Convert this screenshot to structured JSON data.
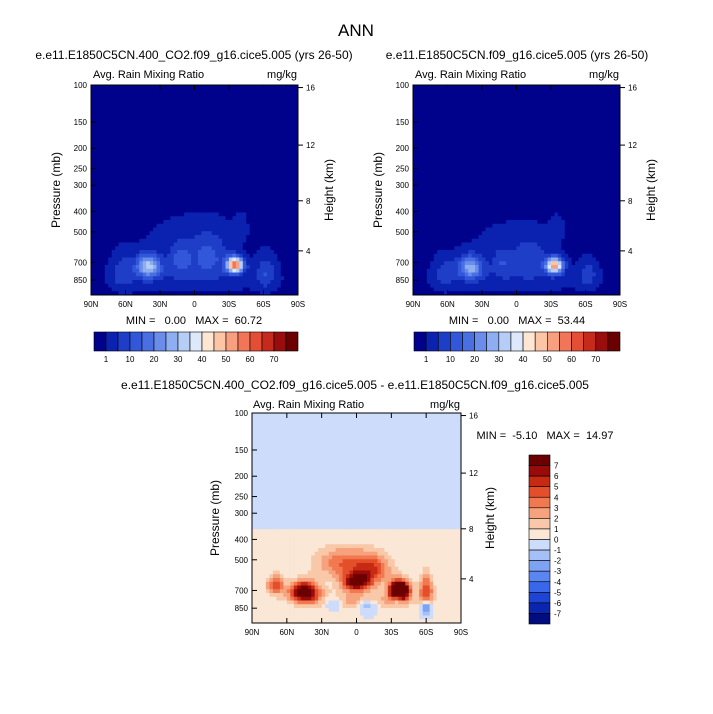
{
  "page_title": "ANN",
  "colors": {
    "abs_scale": [
      "#00028c",
      "#0b22b0",
      "#1f3ec8",
      "#3357da",
      "#4a6fe3",
      "#6a8dec",
      "#8eaef2",
      "#b6cdf6",
      "#dde8fa",
      "#fde6d2",
      "#fbc5a6",
      "#f79f7e",
      "#f17558",
      "#e44e35",
      "#c62a1d",
      "#9a0d0d",
      "#6b0000"
    ],
    "diff_scale": [
      "#000d80",
      "#0a26b0",
      "#1d44d4",
      "#3a66ec",
      "#5a86f2",
      "#7ea3f5",
      "#a5c0f7",
      "#cddcfa",
      "#fbe7d6",
      "#f9c8a8",
      "#f6a27c",
      "#f2784f",
      "#e44e2b",
      "#c62a12",
      "#9a0a0a",
      "#6a0000"
    ]
  },
  "chart_data": [
    {
      "type": "heatmap",
      "title": "e.e11.E1850C5CN.400_CO2.f09_g16.cice5.005 (yrs 26-50)",
      "left_label": "Avg. Rain Mixing Ratio",
      "right_label": "mg/kg",
      "ylabel": "Pressure (mb)",
      "ylabel_right": "Height (km)",
      "x_ticks": [
        "90N",
        "60N",
        "30N",
        "0",
        "30S",
        "60S",
        "90S"
      ],
      "x_values": [
        90,
        60,
        30,
        0,
        -30,
        -60,
        -90
      ],
      "xlim": [
        90,
        -90
      ],
      "y_ticks": [
        "100",
        "150",
        "200",
        "250",
        "300",
        "400",
        "500",
        "700",
        "850"
      ],
      "y_values": [
        100,
        150,
        200,
        250,
        300,
        400,
        500,
        700,
        850
      ],
      "ylim": [
        100,
        1000
      ],
      "height_ticks": [
        "16",
        "12",
        "8",
        "4"
      ],
      "height_values": [
        16,
        12,
        8,
        4
      ],
      "stats": "MIN =   0.00   MAX =  60.72",
      "colorbar_labels": [
        "1",
        "10",
        "20",
        "30",
        "40",
        "50",
        "60",
        "70"
      ],
      "levels": [
        0,
        1,
        5,
        10,
        15,
        20,
        25,
        30,
        35,
        40,
        45,
        50,
        55,
        60,
        65,
        70
      ],
      "blobs": [
        {
          "lat": -35,
          "p": 720,
          "dlat": 7,
          "dp": 60,
          "amp": 60.7
        },
        {
          "lat": 40,
          "p": 730,
          "dlat": 10,
          "dp": 90,
          "amp": 32
        },
        {
          "lat": -12,
          "p": 660,
          "dlat": 14,
          "dp": 130,
          "amp": 12
        },
        {
          "lat": 12,
          "p": 680,
          "dlat": 10,
          "dp": 110,
          "amp": 12
        },
        {
          "lat": 62,
          "p": 780,
          "dlat": 10,
          "dp": 140,
          "amp": 8
        },
        {
          "lat": -62,
          "p": 790,
          "dlat": 8,
          "dp": 130,
          "amp": 9
        },
        {
          "lat": 0,
          "p": 830,
          "dlat": 58,
          "dp": 120,
          "amp": 4
        },
        {
          "lat": 0,
          "p": 520,
          "dlat": 40,
          "dp": 110,
          "amp": 2.5
        },
        {
          "lat": -40,
          "p": 470,
          "dlat": 6,
          "dp": 70,
          "amp": 2
        }
      ]
    },
    {
      "type": "heatmap",
      "title": "e.e11.E1850C5CN.f09_g16.cice5.005 (yrs 26-50)",
      "left_label": "Avg. Rain Mixing Ratio",
      "right_label": "mg/kg",
      "ylabel": "Pressure (mb)",
      "ylabel_right": "Height (km)",
      "x_ticks": [
        "90N",
        "60N",
        "30N",
        "0",
        "30S",
        "60S",
        "90S"
      ],
      "x_values": [
        90,
        60,
        30,
        0,
        -30,
        -60,
        -90
      ],
      "xlim": [
        90,
        -90
      ],
      "y_ticks": [
        "100",
        "150",
        "200",
        "250",
        "300",
        "400",
        "500",
        "700",
        "850"
      ],
      "y_values": [
        100,
        150,
        200,
        250,
        300,
        400,
        500,
        700,
        850
      ],
      "ylim": [
        100,
        1000
      ],
      "height_ticks": [
        "16",
        "12",
        "8",
        "4"
      ],
      "height_values": [
        16,
        12,
        8,
        4
      ],
      "stats": "MIN =   0.00   MAX =  53.44",
      "colorbar_labels": [
        "1",
        "10",
        "20",
        "30",
        "40",
        "50",
        "60",
        "70"
      ],
      "levels": [
        0,
        1,
        5,
        10,
        15,
        20,
        25,
        30,
        35,
        40,
        45,
        50,
        55,
        60,
        65,
        70
      ],
      "blobs": [
        {
          "lat": -33,
          "p": 725,
          "dlat": 7,
          "dp": 60,
          "amp": 53.4
        },
        {
          "lat": 40,
          "p": 740,
          "dlat": 10,
          "dp": 90,
          "amp": 28
        },
        {
          "lat": -12,
          "p": 680,
          "dlat": 14,
          "dp": 120,
          "amp": 9
        },
        {
          "lat": 12,
          "p": 700,
          "dlat": 10,
          "dp": 100,
          "amp": 9
        },
        {
          "lat": 62,
          "p": 790,
          "dlat": 10,
          "dp": 130,
          "amp": 7
        },
        {
          "lat": -62,
          "p": 800,
          "dlat": 8,
          "dp": 120,
          "amp": 7
        },
        {
          "lat": 0,
          "p": 840,
          "dlat": 58,
          "dp": 110,
          "amp": 3.5
        },
        {
          "lat": 0,
          "p": 540,
          "dlat": 38,
          "dp": 110,
          "amp": 2
        },
        {
          "lat": -35,
          "p": 480,
          "dlat": 6,
          "dp": 70,
          "amp": 2
        }
      ]
    },
    {
      "type": "heatmap",
      "title": "e.e11.E1850C5CN.400_CO2.f09_g16.cice5.005 - e.e11.E1850C5CN.f09_g16.cice5.005",
      "left_label": "Avg. Rain Mixing Ratio",
      "right_label": "mg/kg",
      "ylabel": "Pressure (mb)",
      "ylabel_right": "Height (km)",
      "x_ticks": [
        "90N",
        "60N",
        "30N",
        "0",
        "30S",
        "60S",
        "90S"
      ],
      "x_values": [
        90,
        60,
        30,
        0,
        -30,
        -60,
        -90
      ],
      "xlim": [
        90,
        -90
      ],
      "y_ticks": [
        "100",
        "150",
        "200",
        "250",
        "300",
        "400",
        "500",
        "700",
        "850"
      ],
      "y_values": [
        100,
        150,
        200,
        250,
        300,
        400,
        500,
        700,
        850
      ],
      "ylim": [
        100,
        1000
      ],
      "height_ticks": [
        "16",
        "12",
        "8",
        "4"
      ],
      "height_values": [
        16,
        12,
        8,
        4
      ],
      "stats": "MIN =  -5.10   MAX =  14.97",
      "colorbar_labels": [
        "7",
        "6",
        "5",
        "4",
        "3",
        "2",
        "1",
        "0",
        "-1",
        "-2",
        "-3",
        "-4",
        "-5",
        "-6",
        "-7"
      ],
      "levels": [
        -7,
        -6,
        -5,
        -4,
        -3,
        -2,
        -1,
        0,
        1,
        2,
        3,
        4,
        5,
        6,
        7
      ],
      "blobs": [
        {
          "lat": -37,
          "p": 700,
          "dlat": 8,
          "dp": 70,
          "amp": 15
        },
        {
          "lat": 45,
          "p": 710,
          "dlat": 12,
          "dp": 80,
          "amp": 9
        },
        {
          "lat": 0,
          "p": 640,
          "dlat": 12,
          "dp": 60,
          "amp": 8
        },
        {
          "lat": 10,
          "p": 520,
          "dlat": 25,
          "dp": 90,
          "amp": 4
        },
        {
          "lat": -15,
          "p": 560,
          "dlat": 15,
          "dp": 90,
          "amp": 4
        },
        {
          "lat": 70,
          "p": 660,
          "dlat": 7,
          "dp": 70,
          "amp": 5
        },
        {
          "lat": -60,
          "p": 700,
          "dlat": 6,
          "dp": 120,
          "amp": 5
        },
        {
          "lat": 0,
          "p": 780,
          "dlat": 50,
          "dp": 80,
          "amp": 2.5
        },
        {
          "lat": 20,
          "p": 800,
          "dlat": 8,
          "dp": 60,
          "amp": -3
        },
        {
          "lat": -10,
          "p": 820,
          "dlat": 8,
          "dp": 60,
          "amp": -3
        },
        {
          "lat": -60,
          "p": 840,
          "dlat": 4,
          "dp": 60,
          "amp": -5.1
        },
        {
          "lat": -35,
          "p": 770,
          "dlat": 4,
          "dp": 40,
          "amp": -2.5
        }
      ]
    }
  ]
}
